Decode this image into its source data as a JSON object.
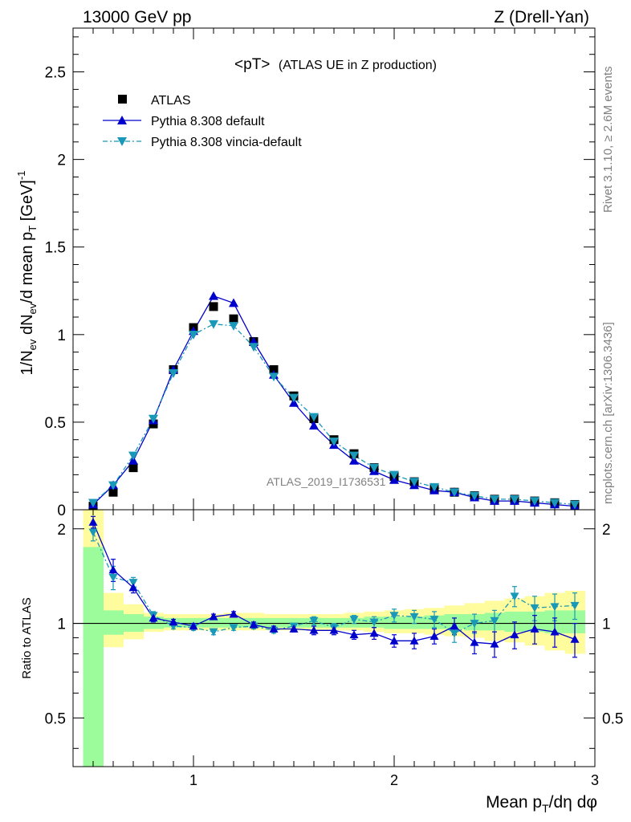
{
  "header": {
    "left": "13000 GeV pp",
    "right": "Z (Drell-Yan)"
  },
  "side_labels": {
    "rivet": "Rivet 3.1.10, ≥ 2.6M events",
    "mcplots": "mcplots.cern.ch [arXiv:1306.3436]"
  },
  "watermark": "ATLAS_2019_I1736531",
  "colors": {
    "data": "#000000",
    "default": "#0000cc",
    "vincia": "#1a98b8",
    "band_green": "#9cfc9c",
    "band_yellow": "#fefc9c"
  },
  "chart_data": [
    {
      "type": "scatter",
      "title_main": "<pT>",
      "title_sub": "(ATLAS UE in Z production)",
      "ylabel": "1/N_ev dN_ev/d mean p_T [GeV]^-1",
      "xlim": [
        0.4,
        3.0
      ],
      "ylim": [
        0,
        2.75
      ],
      "yticks": [
        0,
        0.5,
        1,
        1.5,
        2,
        2.5
      ],
      "ytick_labels": [
        "0",
        "0.5",
        "1",
        "1.5",
        "2",
        "2.5"
      ],
      "legend_placement": "top-left",
      "x": [
        0.5,
        0.6,
        0.7,
        0.8,
        0.9,
        1.0,
        1.1,
        1.2,
        1.3,
        1.4,
        1.5,
        1.6,
        1.7,
        1.8,
        1.9,
        2.0,
        2.1,
        2.2,
        2.3,
        2.4,
        2.5,
        2.6,
        2.7,
        2.8,
        2.9
      ],
      "series": [
        {
          "name": "ATLAS",
          "marker": "square",
          "values": [
            0.02,
            0.1,
            0.24,
            0.49,
            0.8,
            1.04,
            1.16,
            1.09,
            0.96,
            0.8,
            0.65,
            0.52,
            0.4,
            0.32,
            0.24,
            0.19,
            0.16,
            0.12,
            0.1,
            0.08,
            0.06,
            0.06,
            0.05,
            0.04,
            0.03
          ]
        },
        {
          "name": "Pythia 8.308 default",
          "marker": "triangle-up",
          "line": "solid",
          "values": [
            0.03,
            0.14,
            0.28,
            0.51,
            0.8,
            1.02,
            1.22,
            1.18,
            0.96,
            0.77,
            0.61,
            0.48,
            0.37,
            0.28,
            0.22,
            0.17,
            0.14,
            0.11,
            0.1,
            0.07,
            0.05,
            0.05,
            0.04,
            0.03,
            0.02
          ]
        },
        {
          "name": "Pythia 8.308 vincia-default",
          "marker": "triangle-down",
          "line": "dashdot",
          "values": [
            0.04,
            0.14,
            0.31,
            0.52,
            0.78,
            1.0,
            1.06,
            1.05,
            0.93,
            0.76,
            0.64,
            0.53,
            0.39,
            0.31,
            0.24,
            0.2,
            0.16,
            0.13,
            0.1,
            0.08,
            0.06,
            0.06,
            0.05,
            0.04,
            0.03
          ]
        }
      ]
    },
    {
      "type": "line",
      "ylabel": "Ratio to ATLAS",
      "xlabel": "Mean p_T/dη dφ",
      "xlim": [
        0.4,
        3.0
      ],
      "ylim": [
        0.35,
        2.3
      ],
      "xticks": [
        1,
        2,
        3
      ],
      "xtick_labels": [
        "1",
        "2",
        "3"
      ],
      "yticks": [
        0.5,
        1,
        2
      ],
      "ytick_labels": [
        "0.5",
        "1",
        "2"
      ],
      "x": [
        0.5,
        0.6,
        0.7,
        0.8,
        0.9,
        1.0,
        1.1,
        1.2,
        1.3,
        1.4,
        1.5,
        1.6,
        1.7,
        1.8,
        1.9,
        2.0,
        2.1,
        2.2,
        2.3,
        2.4,
        2.5,
        2.6,
        2.7,
        2.8,
        2.9
      ],
      "bands": {
        "green_lo": [
          0.3,
          0.92,
          0.94,
          0.96,
          0.97,
          0.97,
          0.97,
          0.97,
          0.97,
          0.97,
          0.97,
          0.97,
          0.97,
          0.97,
          0.97,
          0.96,
          0.96,
          0.96,
          0.96,
          0.95,
          0.95,
          0.94,
          0.94,
          0.93,
          0.93
        ],
        "green_hi": [
          1.75,
          1.1,
          1.07,
          1.05,
          1.04,
          1.04,
          1.04,
          1.04,
          1.04,
          1.04,
          1.04,
          1.04,
          1.04,
          1.04,
          1.05,
          1.05,
          1.05,
          1.06,
          1.07,
          1.07,
          1.08,
          1.09,
          1.09,
          1.1,
          1.1
        ],
        "yellow_lo": [
          0.3,
          0.84,
          0.89,
          0.94,
          0.95,
          0.95,
          0.95,
          0.95,
          0.95,
          0.95,
          0.95,
          0.95,
          0.95,
          0.95,
          0.94,
          0.93,
          0.93,
          0.92,
          0.91,
          0.9,
          0.88,
          0.87,
          0.85,
          0.82,
          0.8
        ],
        "yellow_hi": [
          2.3,
          1.25,
          1.15,
          1.08,
          1.07,
          1.07,
          1.07,
          1.08,
          1.08,
          1.07,
          1.07,
          1.07,
          1.07,
          1.08,
          1.09,
          1.1,
          1.11,
          1.12,
          1.14,
          1.16,
          1.18,
          1.2,
          1.22,
          1.25,
          1.27
        ]
      },
      "series": [
        {
          "name": "Pythia 8.308 default",
          "values": [
            2.1,
            1.48,
            1.3,
            1.04,
            1.01,
            0.98,
            1.05,
            1.07,
            0.99,
            0.96,
            0.96,
            0.95,
            0.95,
            0.92,
            0.93,
            0.88,
            0.88,
            0.91,
            0.98,
            0.87,
            0.86,
            0.92,
            0.96,
            0.94,
            0.89
          ],
          "err": [
            0.09,
            0.12,
            0.05,
            0.03,
            0.02,
            0.02,
            0.02,
            0.02,
            0.02,
            0.02,
            0.02,
            0.03,
            0.03,
            0.03,
            0.04,
            0.04,
            0.05,
            0.05,
            0.06,
            0.07,
            0.08,
            0.09,
            0.1,
            0.1,
            0.11
          ]
        },
        {
          "name": "Pythia 8.308 vincia-default",
          "values": [
            1.95,
            1.4,
            1.35,
            1.06,
            0.98,
            0.97,
            0.94,
            0.97,
            0.98,
            0.95,
            0.98,
            1.02,
            0.97,
            1.03,
            1.01,
            1.06,
            1.05,
            1.03,
            0.93,
            1.0,
            1.02,
            1.22,
            1.12,
            1.13,
            1.14
          ],
          "err": [
            0.12,
            0.12,
            0.05,
            0.03,
            0.02,
            0.02,
            0.02,
            0.02,
            0.02,
            0.02,
            0.02,
            0.03,
            0.03,
            0.03,
            0.04,
            0.05,
            0.05,
            0.06,
            0.06,
            0.07,
            0.08,
            0.09,
            0.1,
            0.11,
            0.11
          ]
        }
      ]
    }
  ]
}
